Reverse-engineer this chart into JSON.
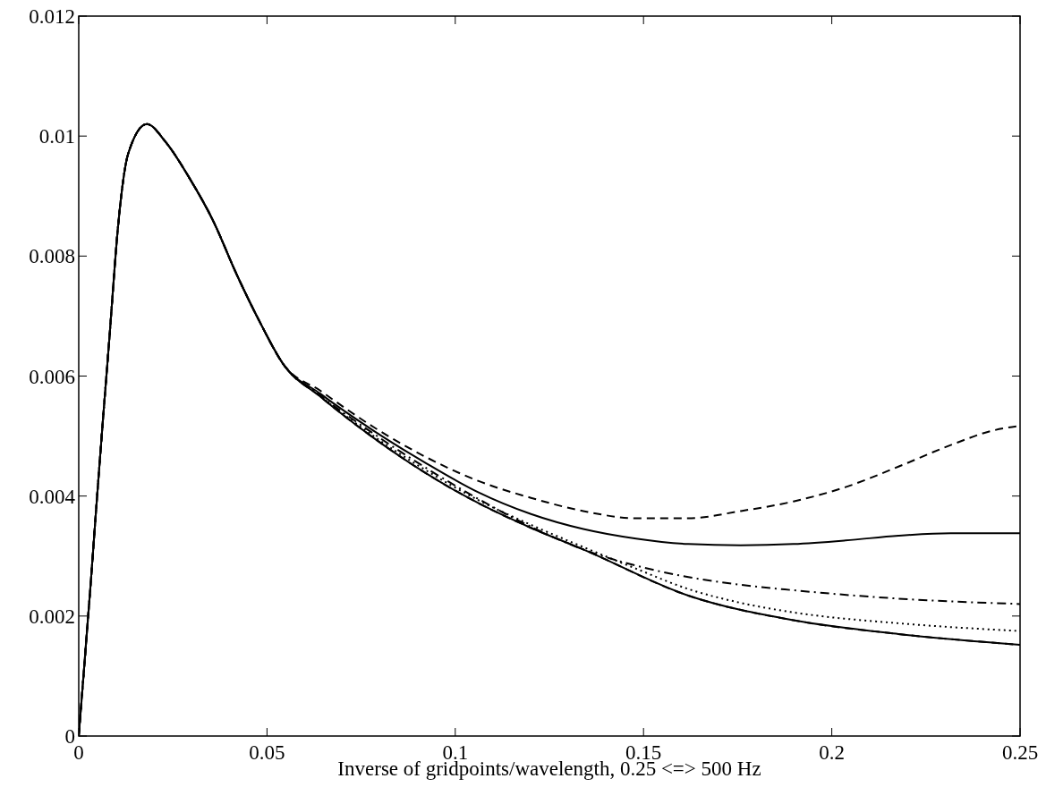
{
  "chart_data": {
    "type": "line",
    "xlabel": "Inverse of gridpoints/wavelength, 0.25 <=> 500 Hz",
    "xlim": [
      0,
      0.25
    ],
    "xticks": [
      0,
      0.05,
      0.1,
      0.15,
      0.2,
      0.25
    ],
    "ylim": [
      0,
      0.012
    ],
    "yticks": [
      0,
      0.002,
      0.004,
      0.006,
      0.008,
      0.01,
      0.012
    ],
    "grid": false,
    "series": [
      {
        "color": "#000000",
        "line_style": "dashed",
        "x": [
          0,
          0.003,
          0.0056,
          0.0081,
          0.0106,
          0.0131,
          0.0181,
          0.0231,
          0.0294,
          0.0356,
          0.0419,
          0.0481,
          0.0543,
          0.0643,
          0.0783,
          0.0922,
          0.1062,
          0.1201,
          0.134,
          0.148,
          0.1619,
          0.1758,
          0.1898,
          0.2037,
          0.2177,
          0.2316,
          0.2427,
          0.25
        ],
        "values": [
          0,
          0.0024,
          0.0046,
          0.0066,
          0.0086,
          0.0097,
          0.0102,
          0.0099,
          0.0093,
          0.0086,
          0.0077,
          0.0069,
          0.0062,
          0.00575,
          0.00515,
          0.00465,
          0.00425,
          0.00397,
          0.00375,
          0.00363,
          0.00363,
          0.00375,
          0.00391,
          0.00415,
          0.00449,
          0.00485,
          0.00509,
          0.00517
        ]
      },
      {
        "color": "#000000",
        "line_style": "solid",
        "x": [
          0,
          0.003,
          0.0056,
          0.0081,
          0.0106,
          0.0131,
          0.0181,
          0.0231,
          0.0294,
          0.0356,
          0.0419,
          0.0481,
          0.0543,
          0.0643,
          0.0783,
          0.0922,
          0.1062,
          0.1201,
          0.134,
          0.148,
          0.1619,
          0.1758,
          0.1898,
          0.2037,
          0.2177,
          0.2316,
          0.25
        ],
        "values": [
          0,
          0.0024,
          0.0046,
          0.0066,
          0.0086,
          0.0097,
          0.0102,
          0.0099,
          0.0093,
          0.0086,
          0.0077,
          0.0069,
          0.0062,
          0.0057,
          0.00509,
          0.00455,
          0.00406,
          0.0037,
          0.00345,
          0.00329,
          0.0032,
          0.00318,
          0.0032,
          0.00326,
          0.00334,
          0.00338,
          0.00338
        ]
      },
      {
        "color": "#000000",
        "line_style": "dashdot",
        "x": [
          0,
          0.003,
          0.0056,
          0.0081,
          0.0106,
          0.0131,
          0.0181,
          0.0231,
          0.0294,
          0.0356,
          0.0419,
          0.0481,
          0.0543,
          0.0643,
          0.0783,
          0.0922,
          0.1062,
          0.1201,
          0.134,
          0.148,
          0.1619,
          0.1758,
          0.1898,
          0.2177,
          0.25
        ],
        "values": [
          0,
          0.0024,
          0.0046,
          0.0066,
          0.0086,
          0.0097,
          0.0102,
          0.0099,
          0.0093,
          0.0086,
          0.0077,
          0.0069,
          0.0062,
          0.00567,
          0.00504,
          0.00447,
          0.00395,
          0.00349,
          0.00311,
          0.00284,
          0.00265,
          0.00252,
          0.00243,
          0.00229,
          0.0022
        ]
      },
      {
        "color": "#000000",
        "line_style": "dotted",
        "x": [
          0,
          0.003,
          0.0056,
          0.0081,
          0.0106,
          0.0131,
          0.0181,
          0.0231,
          0.0294,
          0.0356,
          0.0419,
          0.0481,
          0.0543,
          0.0643,
          0.0783,
          0.0922,
          0.1062,
          0.1201,
          0.134,
          0.148,
          0.1619,
          0.1758,
          0.1898,
          0.2177,
          0.25
        ],
        "values": [
          0,
          0.0024,
          0.0046,
          0.0066,
          0.0086,
          0.0097,
          0.0102,
          0.0099,
          0.0093,
          0.0086,
          0.0077,
          0.0069,
          0.0062,
          0.00566,
          0.005,
          0.00443,
          0.00393,
          0.00352,
          0.00315,
          0.00279,
          0.00245,
          0.00222,
          0.00206,
          0.00188,
          0.00175
        ]
      },
      {
        "color": "#000000",
        "line_style": "solid",
        "x": [
          0,
          0.003,
          0.0056,
          0.0081,
          0.0106,
          0.0131,
          0.0181,
          0.0231,
          0.0294,
          0.0356,
          0.0419,
          0.0481,
          0.0543,
          0.0643,
          0.0783,
          0.0922,
          0.1062,
          0.1201,
          0.134,
          0.1619,
          0.1898,
          0.2177,
          0.25
        ],
        "values": [
          0,
          0.0024,
          0.0046,
          0.0066,
          0.0086,
          0.0097,
          0.0102,
          0.0099,
          0.0093,
          0.0086,
          0.0077,
          0.0069,
          0.0062,
          0.00565,
          0.00497,
          0.00438,
          0.00388,
          0.00347,
          0.00311,
          0.00234,
          0.00193,
          0.0017,
          0.00152
        ]
      },
      {
        "color": "#000000",
        "line_style": "dashed",
        "x": [
          0,
          0.003,
          0.0056,
          0.0081,
          0.0106,
          0.0131,
          0.0181,
          0.0231,
          0.0294,
          0.0356,
          0.0419,
          0.0481,
          0.0543,
          0.0643,
          0.0783,
          0.0922,
          0.1062,
          0.1201,
          0.134,
          0.1619,
          0.1898,
          0.2177,
          0.25
        ],
        "values": [
          0,
          0.0024,
          0.0046,
          0.0066,
          0.0086,
          0.0097,
          0.0102,
          0.0099,
          0.0093,
          0.0086,
          0.0077,
          0.0069,
          0.0062,
          0.00565,
          0.00497,
          0.00438,
          0.00388,
          0.00347,
          0.00311,
          0.00234,
          0.00193,
          0.0017,
          0.00152
        ]
      }
    ]
  }
}
